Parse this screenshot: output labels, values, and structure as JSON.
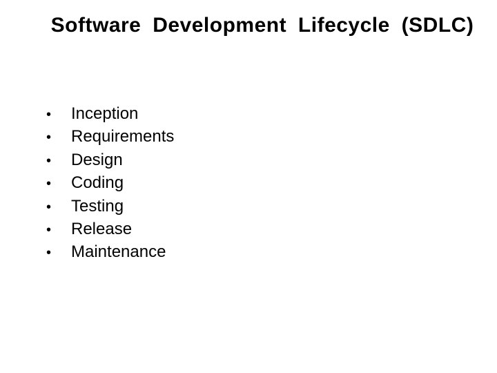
{
  "slide": {
    "title": "Software Development Lifecycle (SDLC)",
    "title_fontsize": 30,
    "title_fontweight": "bold",
    "bullet_items": [
      "Inception",
      "Requirements",
      "Design",
      "Coding",
      "Testing",
      "Release",
      "Maintenance"
    ],
    "bullet_fontsize": 24,
    "bullet_marker": "•",
    "text_color": "#000000",
    "background_color": "#ffffff"
  }
}
